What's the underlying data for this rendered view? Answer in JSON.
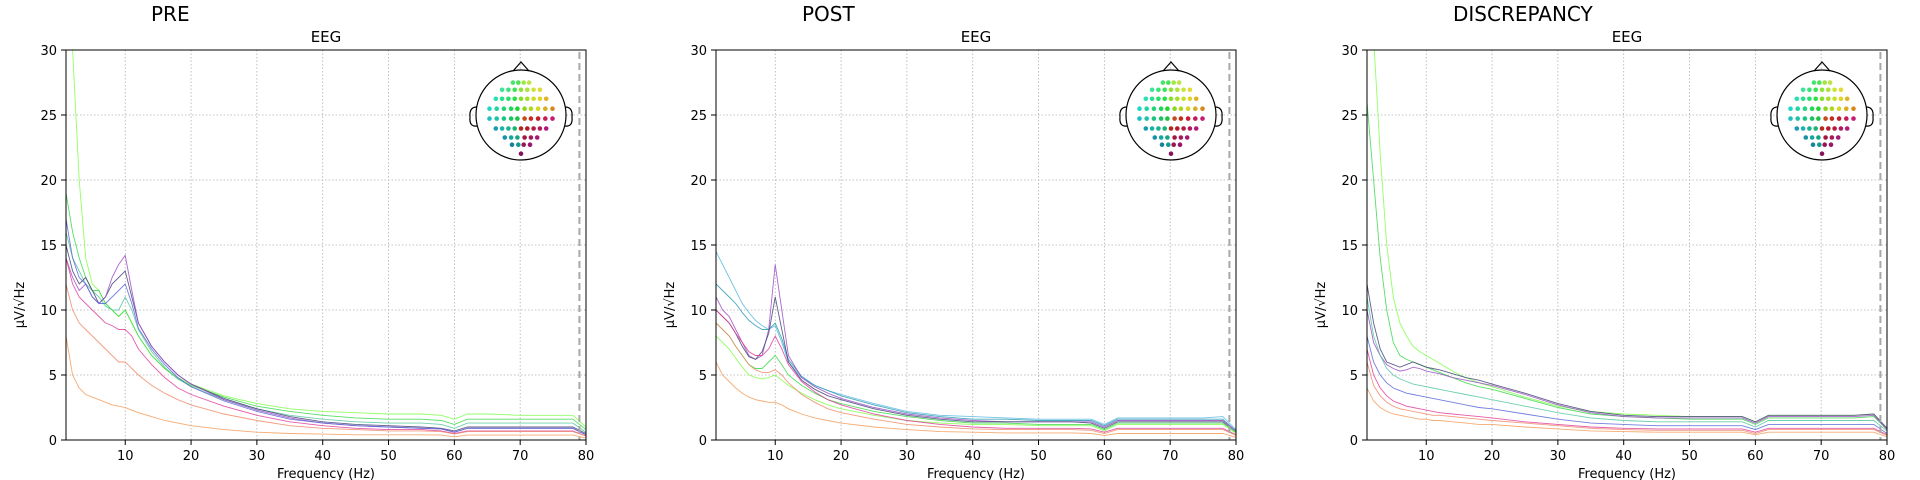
{
  "panels": [
    {
      "figure_title": "PRE"
    },
    {
      "figure_title": "POST"
    },
    {
      "figure_title": "DISCREPANCY"
    }
  ],
  "chart_data": [
    {
      "type": "line",
      "figure_title": "PRE",
      "title": "EEG",
      "xlabel": "Frequency (Hz)",
      "ylabel": "µV/√Hz",
      "xlim": [
        1,
        80
      ],
      "ylim": [
        0,
        30
      ],
      "xticks": [
        10,
        20,
        30,
        40,
        50,
        60,
        70,
        80
      ],
      "yticks": [
        0,
        5,
        10,
        15,
        20,
        25,
        30
      ],
      "grid": true,
      "cutoff_line_hz": 79,
      "sensor_inset": "top-right",
      "x": [
        1,
        2,
        3,
        4,
        5,
        6,
        7,
        8,
        9,
        10,
        11,
        12,
        14,
        16,
        18,
        20,
        25,
        30,
        35,
        40,
        45,
        50,
        55,
        58,
        60,
        62,
        65,
        70,
        75,
        78,
        80
      ],
      "series": [
        {
          "color": "#7fff4a",
          "values": [
            40,
            30,
            20,
            14,
            12,
            11.5,
            10.5,
            10,
            9.5,
            10,
            9,
            8,
            6.5,
            5.5,
            4.8,
            4.3,
            3.4,
            2.8,
            2.4,
            2.2,
            2.1,
            2.0,
            2.0,
            1.9,
            1.6,
            2.0,
            2.0,
            1.9,
            1.9,
            1.9,
            1.0
          ]
        },
        {
          "color": "#3cd84a",
          "values": [
            19,
            16,
            14,
            12.5,
            11.5,
            11.5,
            10.5,
            10,
            9.5,
            10,
            9,
            8,
            6.5,
            5.5,
            4.7,
            4.2,
            3.3,
            2.6,
            2.2,
            1.9,
            1.7,
            1.6,
            1.6,
            1.5,
            1.2,
            1.6,
            1.6,
            1.6,
            1.6,
            1.6,
            0.8
          ]
        },
        {
          "color": "#55c8a0",
          "values": [
            16,
            14,
            13,
            12,
            11.5,
            11,
            10.3,
            10,
            10,
            11,
            10,
            8.5,
            6.8,
            5.6,
            4.7,
            4.1,
            3.1,
            2.4,
            1.9,
            1.6,
            1.4,
            1.3,
            1.3,
            1.2,
            0.9,
            1.3,
            1.3,
            1.3,
            1.3,
            1.3,
            0.6
          ]
        },
        {
          "color": "#444477",
          "values": [
            15,
            13,
            12,
            12.5,
            11.5,
            10.5,
            11,
            12,
            12.5,
            13,
            11,
            9,
            7.2,
            6,
            5,
            4.3,
            3.2,
            2.4,
            1.8,
            1.4,
            1.2,
            1.1,
            1.0,
            0.9,
            0.7,
            1.0,
            1.0,
            1.0,
            1.0,
            1.0,
            0.5
          ]
        },
        {
          "color": "#9a4dc8",
          "values": [
            14,
            12.5,
            11.5,
            12,
            11,
            10.5,
            11,
            12.5,
            13.5,
            14.2,
            11.5,
            9,
            7.2,
            6,
            5,
            4.3,
            3.1,
            2.3,
            1.7,
            1.3,
            1.1,
            1.0,
            0.9,
            0.85,
            0.6,
            0.9,
            0.9,
            0.9,
            0.9,
            0.9,
            0.4
          ]
        },
        {
          "color": "#5a6ad8",
          "values": [
            17,
            14,
            12.5,
            12,
            11,
            10.5,
            10.5,
            11,
            11.5,
            12,
            10.5,
            8.6,
            7,
            5.8,
            4.8,
            4.1,
            3.0,
            2.2,
            1.6,
            1.3,
            1.1,
            1.0,
            0.9,
            0.85,
            0.6,
            0.9,
            0.9,
            0.9,
            0.9,
            0.9,
            0.4
          ]
        },
        {
          "color": "#e0409a",
          "values": [
            14,
            12,
            11,
            10.5,
            10,
            9.5,
            9,
            8.8,
            8.5,
            8.5,
            8,
            7,
            5.8,
            4.8,
            4.0,
            3.5,
            2.6,
            1.9,
            1.4,
            1.1,
            0.9,
            0.8,
            0.8,
            0.7,
            0.5,
            0.7,
            0.7,
            0.7,
            0.7,
            0.7,
            0.3
          ]
        },
        {
          "color": "#f08a6a",
          "values": [
            12,
            10,
            9,
            8.5,
            8,
            7.5,
            7,
            6.5,
            6,
            6,
            5.5,
            5,
            4.2,
            3.6,
            3.1,
            2.7,
            2.0,
            1.5,
            1.1,
            0.9,
            0.8,
            0.7,
            0.7,
            0.65,
            0.45,
            0.65,
            0.65,
            0.65,
            0.65,
            0.65,
            0.3
          ]
        },
        {
          "color": "#f39c5a",
          "values": [
            8,
            5,
            4,
            3.5,
            3.3,
            3.1,
            2.9,
            2.7,
            2.6,
            2.5,
            2.3,
            2.1,
            1.8,
            1.5,
            1.3,
            1.1,
            0.8,
            0.6,
            0.5,
            0.45,
            0.4,
            0.4,
            0.4,
            0.38,
            0.25,
            0.38,
            0.38,
            0.38,
            0.38,
            0.38,
            0.15
          ]
        }
      ]
    },
    {
      "type": "line",
      "figure_title": "POST",
      "title": "EEG",
      "xlabel": "Frequency (Hz)",
      "ylabel": "µV/√Hz",
      "xlim": [
        1,
        80
      ],
      "ylim": [
        0,
        30
      ],
      "xticks": [
        10,
        20,
        30,
        40,
        50,
        60,
        70,
        80
      ],
      "yticks": [
        0,
        5,
        10,
        15,
        20,
        25,
        30
      ],
      "grid": true,
      "cutoff_line_hz": 79,
      "sensor_inset": "top-right",
      "x": [
        1,
        2,
        3,
        4,
        5,
        6,
        7,
        8,
        9,
        10,
        11,
        12,
        14,
        16,
        18,
        20,
        25,
        30,
        35,
        40,
        45,
        50,
        55,
        58,
        60,
        62,
        65,
        70,
        75,
        78,
        80
      ],
      "series": [
        {
          "color": "#5bb8e0",
          "values": [
            14.5,
            13.5,
            12.5,
            11.5,
            10.5,
            9.8,
            9.2,
            8.8,
            8.5,
            8.8,
            7.5,
            6,
            4.8,
            4.2,
            3.8,
            3.5,
            2.8,
            2.2,
            1.9,
            1.8,
            1.7,
            1.6,
            1.6,
            1.6,
            1.2,
            1.7,
            1.7,
            1.7,
            1.7,
            1.8,
            0.8
          ]
        },
        {
          "color": "#2a9ab0",
          "values": [
            12,
            11.5,
            11,
            10.5,
            9.8,
            9.2,
            8.8,
            8.5,
            8.5,
            9,
            7.8,
            6.2,
            4.9,
            4.2,
            3.8,
            3.4,
            2.7,
            2.1,
            1.8,
            1.6,
            1.6,
            1.5,
            1.5,
            1.5,
            1.1,
            1.6,
            1.6,
            1.6,
            1.6,
            1.6,
            0.7
          ]
        },
        {
          "color": "#9a4dc8",
          "values": [
            11,
            10,
            9.5,
            8.5,
            7.5,
            6.5,
            6.2,
            6.5,
            8.5,
            13.5,
            10,
            6.5,
            4.8,
            4.1,
            3.6,
            3.2,
            2.5,
            2.0,
            1.7,
            1.5,
            1.4,
            1.4,
            1.4,
            1.4,
            1.0,
            1.5,
            1.5,
            1.5,
            1.5,
            1.5,
            0.7
          ]
        },
        {
          "color": "#444477",
          "values": [
            10,
            9.5,
            9,
            8.2,
            7.2,
            6.4,
            6.2,
            6.8,
            8.2,
            11,
            8.5,
            6,
            4.6,
            3.9,
            3.4,
            3.1,
            2.4,
            1.9,
            1.6,
            1.4,
            1.4,
            1.4,
            1.4,
            1.3,
            0.9,
            1.4,
            1.4,
            1.4,
            1.4,
            1.4,
            0.6
          ]
        },
        {
          "color": "#3cd84a",
          "values": [
            9,
            8.5,
            8,
            7.2,
            6.5,
            5.8,
            5.5,
            5.5,
            6,
            6.5,
            5.8,
            5,
            4.2,
            3.6,
            3.1,
            2.8,
            2.2,
            1.8,
            1.5,
            1.3,
            1.3,
            1.2,
            1.2,
            1.2,
            0.8,
            1.3,
            1.3,
            1.3,
            1.3,
            1.3,
            0.6
          ]
        },
        {
          "color": "#7fff4a",
          "values": [
            8,
            7.5,
            7,
            6.3,
            5.6,
            5,
            4.8,
            4.7,
            4.8,
            5,
            4.6,
            4.2,
            3.6,
            3.1,
            2.7,
            2.4,
            1.9,
            1.5,
            1.3,
            1.2,
            1.2,
            1.1,
            1.1,
            1.1,
            0.7,
            1.2,
            1.2,
            1.2,
            1.2,
            1.2,
            0.5
          ]
        },
        {
          "color": "#e0409a",
          "values": [
            10,
            9.5,
            9,
            8.2,
            7.5,
            6.8,
            6.5,
            6.5,
            7,
            8,
            7,
            5.8,
            4.5,
            3.7,
            3.1,
            2.7,
            2.0,
            1.5,
            1.2,
            1.0,
            0.9,
            0.9,
            0.9,
            0.85,
            0.6,
            0.9,
            0.9,
            0.9,
            0.9,
            0.9,
            0.4
          ]
        },
        {
          "color": "#f08a6a",
          "values": [
            9,
            8.5,
            8,
            7.2,
            6.5,
            5.8,
            5.4,
            5.2,
            5.2,
            5.4,
            5,
            4.4,
            3.5,
            2.9,
            2.4,
            2.1,
            1.6,
            1.2,
            1.0,
            0.85,
            0.8,
            0.8,
            0.8,
            0.75,
            0.5,
            0.8,
            0.8,
            0.8,
            0.8,
            0.8,
            0.35
          ]
        },
        {
          "color": "#f39c5a",
          "values": [
            6,
            5,
            4.5,
            4,
            3.6,
            3.3,
            3.1,
            3,
            2.9,
            2.9,
            2.7,
            2.4,
            2.0,
            1.7,
            1.5,
            1.3,
            1.0,
            0.8,
            0.65,
            0.6,
            0.55,
            0.55,
            0.55,
            0.5,
            0.35,
            0.5,
            0.5,
            0.5,
            0.5,
            0.5,
            0.2
          ]
        }
      ]
    },
    {
      "type": "line",
      "figure_title": "DISCREPANCY",
      "title": "EEG",
      "xlabel": "Frequency (Hz)",
      "ylabel": "µV/√Hz",
      "xlim": [
        1,
        80
      ],
      "ylim": [
        0,
        30
      ],
      "xticks": [
        10,
        20,
        30,
        40,
        50,
        60,
        70,
        80
      ],
      "yticks": [
        0,
        5,
        10,
        15,
        20,
        25,
        30
      ],
      "grid": true,
      "cutoff_line_hz": 79,
      "sensor_inset": "top-right",
      "x": [
        1,
        2,
        3,
        4,
        5,
        6,
        7,
        8,
        9,
        10,
        11,
        12,
        14,
        16,
        18,
        20,
        25,
        30,
        35,
        40,
        45,
        50,
        55,
        58,
        60,
        62,
        65,
        70,
        75,
        78,
        80
      ],
      "series": [
        {
          "color": "#7fff4a",
          "values": [
            40,
            31,
            22,
            15,
            11,
            9,
            8,
            7.2,
            6.8,
            6.5,
            6.2,
            5.9,
            5.3,
            4.8,
            4.4,
            4.1,
            3.3,
            2.6,
            2.2,
            2.0,
            1.9,
            1.8,
            1.8,
            1.8,
            1.4,
            1.9,
            1.9,
            1.9,
            1.9,
            2.0,
            0.9
          ]
        },
        {
          "color": "#3cd84a",
          "values": [
            26,
            20,
            14,
            10,
            7.5,
            6.5,
            6.2,
            6,
            5.8,
            5.6,
            5.4,
            5.2,
            4.8,
            4.4,
            4.1,
            3.9,
            3.2,
            2.5,
            2.0,
            1.8,
            1.7,
            1.6,
            1.6,
            1.6,
            1.2,
            1.7,
            1.7,
            1.7,
            1.7,
            1.8,
            0.8
          ]
        },
        {
          "color": "#444477",
          "values": [
            12,
            9,
            7,
            6,
            5.8,
            5.6,
            5.8,
            6,
            5.8,
            5.6,
            5.5,
            5.4,
            5.1,
            4.8,
            4.6,
            4.3,
            3.6,
            2.8,
            2.2,
            1.9,
            1.8,
            1.8,
            1.8,
            1.8,
            1.4,
            1.9,
            1.9,
            1.9,
            1.9,
            2.0,
            0.9
          ]
        },
        {
          "color": "#9a4dc8",
          "values": [
            10,
            7.5,
            6.5,
            5.8,
            5.5,
            5.3,
            5.4,
            5.6,
            5.5,
            5.3,
            5.2,
            5.1,
            4.8,
            4.6,
            4.4,
            4.2,
            3.5,
            2.7,
            2.1,
            1.8,
            1.7,
            1.7,
            1.7,
            1.7,
            1.3,
            1.8,
            1.8,
            1.8,
            1.8,
            1.9,
            0.8
          ]
        },
        {
          "color": "#55c8a0",
          "values": [
            11,
            8,
            6.5,
            5.5,
            5,
            4.7,
            4.5,
            4.3,
            4.2,
            4.1,
            4,
            3.9,
            3.7,
            3.5,
            3.3,
            3.1,
            2.6,
            2.1,
            1.7,
            1.5,
            1.4,
            1.4,
            1.4,
            1.4,
            1.0,
            1.5,
            1.5,
            1.5,
            1.5,
            1.5,
            0.7
          ]
        },
        {
          "color": "#5a6ad8",
          "values": [
            8,
            6,
            5,
            4.4,
            4.0,
            3.8,
            3.6,
            3.5,
            3.4,
            3.3,
            3.2,
            3.1,
            2.9,
            2.7,
            2.5,
            2.4,
            2.0,
            1.6,
            1.3,
            1.2,
            1.1,
            1.1,
            1.1,
            1.1,
            0.8,
            1.2,
            1.2,
            1.2,
            1.2,
            1.2,
            0.5
          ]
        },
        {
          "color": "#e0409a",
          "values": [
            7,
            5,
            4,
            3.4,
            3.0,
            2.8,
            2.6,
            2.5,
            2.4,
            2.3,
            2.2,
            2.1,
            2.0,
            1.9,
            1.8,
            1.7,
            1.4,
            1.2,
            1.0,
            0.9,
            0.85,
            0.85,
            0.85,
            0.85,
            0.6,
            0.9,
            0.9,
            0.9,
            0.9,
            0.9,
            0.4
          ]
        },
        {
          "color": "#f08a6a",
          "values": [
            6,
            4.2,
            3.4,
            2.9,
            2.6,
            2.4,
            2.3,
            2.2,
            2.1,
            2.0,
            1.9,
            1.9,
            1.8,
            1.7,
            1.6,
            1.5,
            1.3,
            1.1,
            0.9,
            0.8,
            0.75,
            0.75,
            0.75,
            0.75,
            0.5,
            0.8,
            0.8,
            0.8,
            0.8,
            0.8,
            0.35
          ]
        },
        {
          "color": "#f39c5a",
          "values": [
            4,
            3,
            2.5,
            2.2,
            2.0,
            1.9,
            1.8,
            1.7,
            1.6,
            1.6,
            1.5,
            1.5,
            1.4,
            1.3,
            1.2,
            1.2,
            1.0,
            0.85,
            0.7,
            0.65,
            0.6,
            0.6,
            0.6,
            0.6,
            0.4,
            0.6,
            0.6,
            0.6,
            0.6,
            0.6,
            0.25
          ]
        }
      ]
    }
  ]
}
